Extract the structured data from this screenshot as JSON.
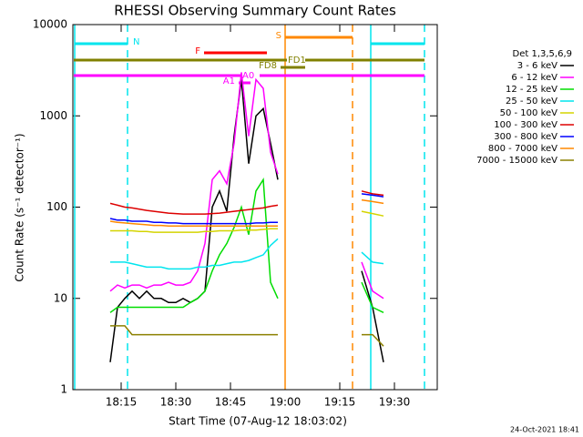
{
  "chart_data": {
    "type": "line",
    "title": "RHESSI Observing Summary Count Rates",
    "xlabel": "Start Time (07-Aug-12 18:03:02)",
    "ylabel": "Count Rate (s⁻¹ detector⁻¹)",
    "legend_title": "Det 1,3,5,6,9",
    "footer": "24-Oct-2021 18:41",
    "yscale": "log",
    "ylim": [
      1,
      10000
    ],
    "yticks": [
      1,
      10,
      100,
      1000,
      10000
    ],
    "xlim": [
      "18:01:45",
      "19:41:45"
    ],
    "xticks": [
      "18:15",
      "18:30",
      "18:45",
      "19:00",
      "19:15",
      "19:30"
    ],
    "x": [
      "18:12",
      "18:14",
      "18:16",
      "18:18",
      "18:20",
      "18:22",
      "18:24",
      "18:26",
      "18:28",
      "18:30",
      "18:32",
      "18:34",
      "18:36",
      "18:38",
      "18:40",
      "18:42",
      "18:44",
      "18:46",
      "18:48",
      "18:50",
      "18:52",
      "18:54",
      "18:56",
      "18:58",
      "19:10",
      "19:21",
      "19:24",
      "19:27"
    ],
    "series": [
      {
        "name": "3 - 6 keV",
        "color": "#000000",
        "values": [
          2,
          8,
          10,
          12,
          10,
          12,
          10,
          10,
          9,
          9,
          10,
          9,
          10,
          12,
          100,
          150,
          90,
          600,
          2500,
          300,
          1000,
          1200,
          500,
          200,
          null,
          20,
          8,
          2
        ]
      },
      {
        "name": "6 - 12 keV",
        "color": "#ff00ff",
        "values": [
          12,
          14,
          13,
          14,
          14,
          13,
          14,
          14,
          15,
          14,
          14,
          15,
          20,
          40,
          200,
          250,
          180,
          500,
          3000,
          600,
          2500,
          2000,
          400,
          230,
          null,
          25,
          12,
          10
        ]
      },
      {
        "name": "12 - 25 keV",
        "color": "#00dd00",
        "values": [
          7,
          8,
          8,
          8,
          8,
          8,
          8,
          8,
          8,
          8,
          8,
          9,
          10,
          12,
          20,
          30,
          40,
          60,
          100,
          50,
          150,
          200,
          15,
          10,
          null,
          15,
          8,
          7
        ]
      },
      {
        "name": "25 - 50 keV",
        "color": "#00e5ee",
        "values": [
          25,
          25,
          25,
          24,
          23,
          22,
          22,
          22,
          21,
          21,
          21,
          21,
          22,
          22,
          23,
          23,
          24,
          25,
          25,
          26,
          28,
          30,
          38,
          45,
          null,
          32,
          25,
          24
        ]
      },
      {
        "name": "50 - 100 keV",
        "color": "#d4d400",
        "values": [
          55,
          55,
          55,
          55,
          54,
          54,
          53,
          53,
          53,
          53,
          53,
          53,
          53,
          54,
          54,
          55,
          55,
          55,
          56,
          56,
          56,
          57,
          58,
          58,
          null,
          90,
          85,
          80
        ]
      },
      {
        "name": "100 - 300 keV",
        "color": "#dd0000",
        "values": [
          110,
          105,
          100,
          98,
          95,
          92,
          90,
          88,
          86,
          85,
          84,
          84,
          84,
          84,
          85,
          86,
          88,
          90,
          92,
          94,
          96,
          98,
          102,
          105,
          null,
          150,
          140,
          135
        ]
      },
      {
        "name": "300 - 800 keV",
        "color": "#0000ff",
        "values": [
          75,
          72,
          72,
          70,
          70,
          70,
          68,
          68,
          67,
          67,
          66,
          66,
          66,
          66,
          66,
          66,
          66,
          66,
          66,
          66,
          67,
          67,
          68,
          68,
          null,
          140,
          135,
          130
        ]
      },
      {
        "name": "800 - 7000 keV",
        "color": "#ff8800",
        "values": [
          70,
          68,
          67,
          66,
          65,
          64,
          63,
          63,
          62,
          62,
          62,
          62,
          62,
          62,
          62,
          62,
          62,
          62,
          62,
          62,
          62,
          62,
          62,
          62,
          null,
          120,
          115,
          110
        ]
      },
      {
        "name": "7000 - 15000 keV",
        "color": "#8b8000",
        "values": [
          5,
          5,
          5,
          4,
          4,
          4,
          4,
          4,
          4,
          4,
          4,
          4,
          4,
          4,
          4,
          4,
          4,
          4,
          4,
          4,
          4,
          4,
          4,
          4,
          null,
          4,
          4,
          3
        ]
      }
    ],
    "flags": [
      {
        "label": "N",
        "color": "#00e5ee",
        "intervals": [
          {
            "start": "18:02:15",
            "end": "18:16:45"
          },
          {
            "start": "19:23:30",
            "end": "19:38:15"
          }
        ]
      },
      {
        "label": "S",
        "color": "#ff8800",
        "intervals": [
          {
            "start": "19:00:00",
            "end": "19:18:30"
          }
        ]
      },
      {
        "label": "F",
        "color": "#ff0000",
        "intervals": [
          {
            "start": "18:37:45",
            "end": "18:55:00"
          }
        ]
      },
      {
        "label": "FD1",
        "color": "#808000",
        "intervals": [
          {
            "start": "18:02:00",
            "end": "19:38:15"
          }
        ]
      },
      {
        "label": "FD8",
        "color": "#808000",
        "intervals": [
          {
            "start": "18:58:45",
            "end": "19:05:30"
          }
        ]
      },
      {
        "label": "A0",
        "color": "#ff00ff",
        "intervals": [
          {
            "start": "18:02:00",
            "end": "19:38:15"
          }
        ]
      },
      {
        "label": "A1",
        "color": "#ff00ff",
        "intervals": [
          {
            "start": "18:47:15",
            "end": "18:50:30"
          }
        ]
      }
    ]
  }
}
